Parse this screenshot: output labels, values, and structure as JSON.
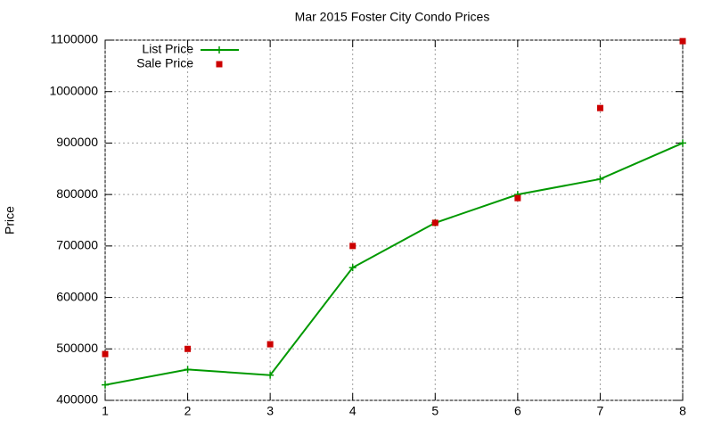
{
  "chart_data": {
    "type": "line",
    "title": "Mar 2015 Foster City Condo Prices",
    "y_label": "Price",
    "x": [
      1,
      2,
      3,
      4,
      5,
      6,
      7,
      8
    ],
    "series": [
      {
        "name": "List Price",
        "color": "#009900",
        "mode": "lines+points",
        "values": [
          430000,
          460000,
          449000,
          658000,
          745000,
          800000,
          830000,
          900000
        ]
      },
      {
        "name": "Sale Price",
        "color": "#cc0000",
        "mode": "points",
        "values": [
          490000,
          500000,
          509000,
          700000,
          745000,
          793000,
          968000,
          1098000
        ]
      }
    ],
    "xlim": [
      1,
      8
    ],
    "xticks": [
      1,
      2,
      3,
      4,
      5,
      6,
      7,
      8
    ],
    "ylim": [
      400000,
      1100000
    ],
    "yticks": [
      400000,
      500000,
      600000,
      700000,
      800000,
      900000,
      1000000,
      1100000
    ],
    "grid": true,
    "legend": "top-left"
  }
}
